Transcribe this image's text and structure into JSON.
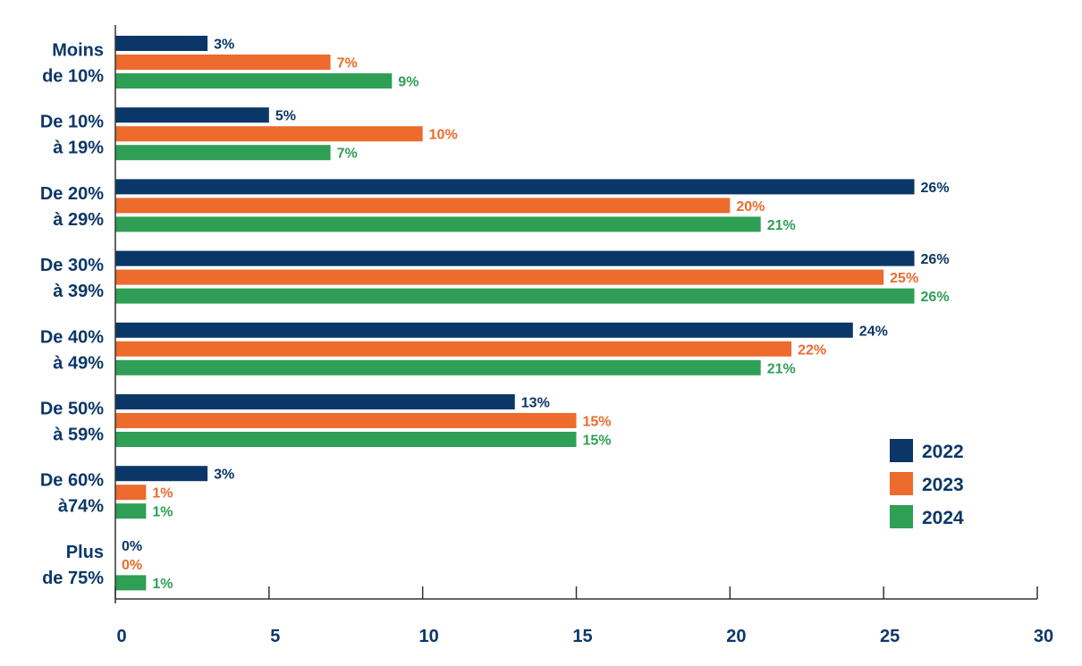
{
  "chart_data": {
    "type": "bar",
    "orientation": "horizontal",
    "categories": [
      [
        "Moins",
        "de 10%"
      ],
      [
        "De 10%",
        "à 19%"
      ],
      [
        "De 20%",
        "à 29%"
      ],
      [
        "De 30%",
        "à 39%"
      ],
      [
        "De 40%",
        "à 49%"
      ],
      [
        "De 50%",
        "à 59%"
      ],
      [
        "De 60%",
        "à74%"
      ],
      [
        "Plus",
        "de 75%"
      ]
    ],
    "series": [
      {
        "name": "2022",
        "color": "#0b3768",
        "values": [
          3,
          5,
          26,
          26,
          24,
          13,
          3,
          0
        ],
        "labels": [
          "3%",
          "5%",
          "26%",
          "26%",
          "24%",
          "13%",
          "3%",
          "0%"
        ]
      },
      {
        "name": "2023",
        "color": "#ec6b2d",
        "values": [
          7,
          10,
          20,
          25,
          22,
          15,
          1,
          0
        ],
        "labels": [
          "7%",
          "10%",
          "20%",
          "25%",
          "22%",
          "15%",
          "1%",
          "0%"
        ]
      },
      {
        "name": "2024",
        "color": "#2e9f55",
        "values": [
          9,
          7,
          21,
          26,
          21,
          15,
          1,
          1
        ],
        "labels": [
          "9%",
          "7%",
          "21%",
          "26%",
          "21%",
          "15%",
          "1%",
          "1%"
        ]
      }
    ],
    "xticks": [
      "0",
      "5",
      "10",
      "15",
      "20",
      "25",
      "30"
    ],
    "xlim": [
      0,
      30
    ],
    "title": "",
    "xlabel": "",
    "ylabel": "",
    "grid": false,
    "legend_position": "bottom-right"
  }
}
